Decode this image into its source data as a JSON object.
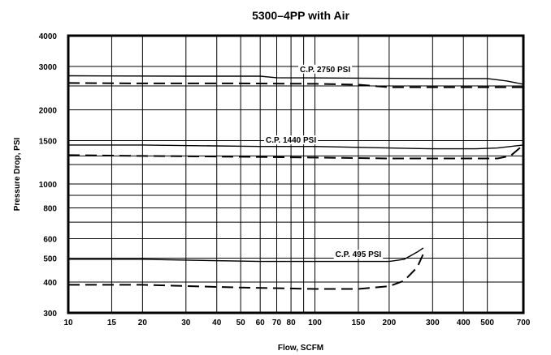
{
  "chart_data": {
    "type": "line",
    "title": "5300–4PP with Air",
    "xlabel": "Flow, SCFM",
    "ylabel": "Pressure Drop, PSI",
    "x_scale": "log",
    "y_scale": "log",
    "xlim": [
      10,
      700
    ],
    "ylim": [
      300,
      4000
    ],
    "grid": true,
    "x_ticks": [
      {
        "value": 10,
        "label": "10"
      },
      {
        "value": 15,
        "label": "15"
      },
      {
        "value": 20,
        "label": "20"
      },
      {
        "value": 30,
        "label": "30"
      },
      {
        "value": 40,
        "label": "40"
      },
      {
        "value": 50,
        "label": "50"
      },
      {
        "value": 60,
        "label": "60"
      },
      {
        "value": 70,
        "label": "70"
      },
      {
        "value": 80,
        "label": "80"
      },
      {
        "value": 100,
        "label": "100"
      },
      {
        "value": 150,
        "label": "150"
      },
      {
        "value": 200,
        "label": "200"
      },
      {
        "value": 300,
        "label": "300"
      },
      {
        "value": 400,
        "label": "400"
      },
      {
        "value": 500,
        "label": "500"
      },
      {
        "value": 700,
        "label": "700"
      }
    ],
    "x_minor_grid": [
      90
    ],
    "y_ticks": [
      {
        "value": 300,
        "label": "300"
      },
      {
        "value": 400,
        "label": "400"
      },
      {
        "value": 500,
        "label": "500"
      },
      {
        "value": 600,
        "label": "600"
      },
      {
        "value": 800,
        "label": "800"
      },
      {
        "value": 1000,
        "label": "1000"
      },
      {
        "value": 1500,
        "label": "1500"
      },
      {
        "value": 2000,
        "label": "2000"
      },
      {
        "value": 3000,
        "label": "3000"
      },
      {
        "value": 4000,
        "label": "4000"
      }
    ],
    "y_minor_grid": [
      700,
      900,
      1200,
      1300,
      2500
    ],
    "series": [
      {
        "name": "C.P. 2750 PSI",
        "style": "solid",
        "points": [
          [
            10,
            2750
          ],
          [
            30,
            2740
          ],
          [
            60,
            2740
          ],
          [
            70,
            2700
          ],
          [
            150,
            2690
          ],
          [
            300,
            2680
          ],
          [
            500,
            2680
          ],
          [
            600,
            2620
          ],
          [
            700,
            2540
          ]
        ]
      },
      {
        "name": "",
        "style": "dashed",
        "points": [
          [
            10,
            2570
          ],
          [
            20,
            2560
          ],
          [
            50,
            2560
          ],
          [
            100,
            2550
          ],
          [
            150,
            2530
          ],
          [
            200,
            2470
          ],
          [
            300,
            2470
          ],
          [
            500,
            2470
          ],
          [
            700,
            2470
          ]
        ]
      },
      {
        "name": "C.P. 1440 PSI",
        "style": "solid",
        "points": [
          [
            10,
            1440
          ],
          [
            20,
            1440
          ],
          [
            60,
            1420
          ],
          [
            100,
            1420
          ],
          [
            200,
            1400
          ],
          [
            300,
            1390
          ],
          [
            450,
            1390
          ],
          [
            550,
            1400
          ],
          [
            700,
            1440
          ]
        ]
      },
      {
        "name": "",
        "style": "dashed",
        "points": [
          [
            10,
            1310
          ],
          [
            20,
            1300
          ],
          [
            50,
            1290
          ],
          [
            100,
            1280
          ],
          [
            200,
            1270
          ],
          [
            400,
            1270
          ],
          [
            550,
            1270
          ],
          [
            620,
            1300
          ],
          [
            700,
            1440
          ]
        ]
      },
      {
        "name": "C.P. 495 PSI",
        "style": "solid",
        "points": [
          [
            10,
            495
          ],
          [
            20,
            495
          ],
          [
            60,
            485
          ],
          [
            100,
            485
          ],
          [
            150,
            485
          ],
          [
            200,
            485
          ],
          [
            230,
            495
          ],
          [
            260,
            530
          ],
          [
            275,
            550
          ]
        ]
      },
      {
        "name": "",
        "style": "dashed",
        "points": [
          [
            10,
            390
          ],
          [
            20,
            390
          ],
          [
            50,
            380
          ],
          [
            100,
            375
          ],
          [
            150,
            375
          ],
          [
            200,
            385
          ],
          [
            230,
            405
          ],
          [
            260,
            460
          ],
          [
            275,
            520
          ]
        ]
      }
    ]
  }
}
